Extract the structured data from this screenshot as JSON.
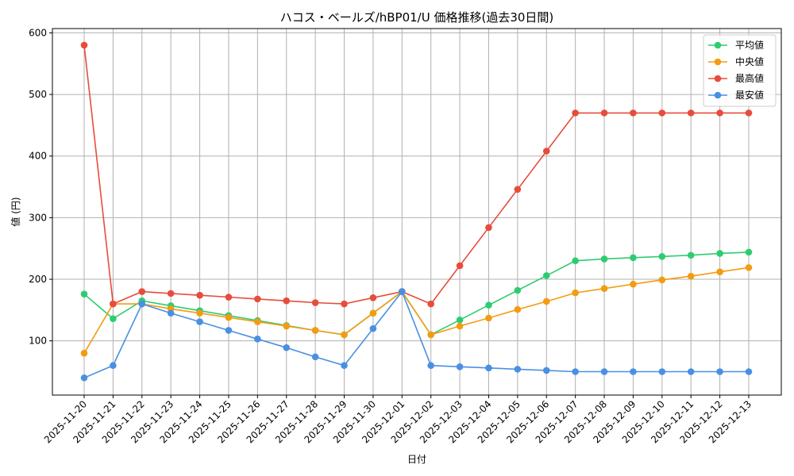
{
  "chart_data": {
    "type": "line",
    "title": "ハコス・ベールズ/hBP01/U 価格推移(過去30日間)",
    "xlabel": "日付",
    "ylabel": "値 (円)",
    "ylim": [
      12,
      607
    ],
    "yticks": [
      100,
      200,
      300,
      400,
      500,
      600
    ],
    "grid": true,
    "legend_position": "top-right",
    "categories": [
      "2025-11-20",
      "2025-11-21",
      "2025-11-22",
      "2025-11-23",
      "2025-11-24",
      "2025-11-25",
      "2025-11-26",
      "2025-11-27",
      "2025-11-28",
      "2025-11-29",
      "2025-11-30",
      "2025-12-01",
      "2025-12-02",
      "2025-12-03",
      "2025-12-04",
      "2025-12-05",
      "2025-12-06",
      "2025-12-07",
      "2025-12-08",
      "2025-12-09",
      "2025-12-10",
      "2025-12-11",
      "2025-12-12",
      "2025-12-13"
    ],
    "series": [
      {
        "name": "平均値",
        "color": "#2ecc71",
        "values": [
          176,
          136,
          165,
          157,
          149,
          141,
          133,
          125,
          117,
          110,
          145,
          180,
          110,
          134,
          158,
          182,
          206,
          230,
          233,
          235,
          237,
          239,
          242,
          244
        ]
      },
      {
        "name": "中央値",
        "color": "#f39c12",
        "values": [
          80,
          160,
          160,
          152,
          145,
          138,
          131,
          124,
          117,
          110,
          145,
          180,
          110,
          124,
          137,
          151,
          164,
          178,
          185,
          192,
          199,
          205,
          212,
          219
        ]
      },
      {
        "name": "最高値",
        "color": "#e74c3c",
        "values": [
          580,
          160,
          180,
          177,
          174,
          171,
          168,
          165,
          162,
          160,
          170,
          180,
          160,
          222,
          284,
          346,
          408,
          470,
          470,
          470,
          470,
          470,
          470,
          470
        ]
      },
      {
        "name": "最安値",
        "color": "#4a90e2",
        "values": [
          40,
          60,
          160,
          145,
          131,
          117,
          103,
          89,
          74,
          60,
          120,
          180,
          60,
          58,
          56,
          54,
          52,
          50,
          50,
          50,
          50,
          50,
          50,
          50
        ]
      }
    ]
  }
}
